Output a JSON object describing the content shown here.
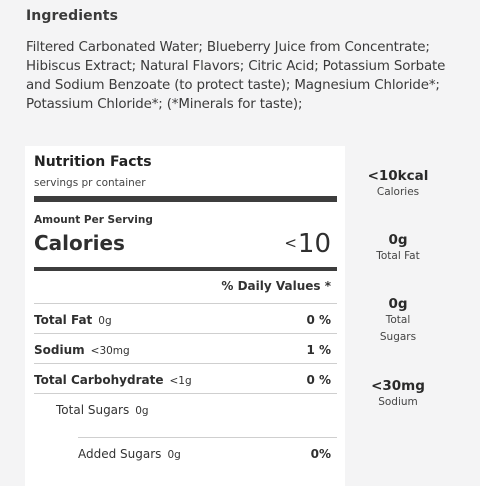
{
  "ingredients": {
    "title": "Ingredients",
    "text": "Filtered Carbonated Water; Blueberry Juice from Concentrate; Hibiscus Extract; Natural Flavors; Citric Acid; Potassium Sorbate and Sodium Benzoate (to protect taste); Magnesium Chloride*; Potassium Chloride*; (*Minerals for taste);"
  },
  "nutrition": {
    "title": "Nutrition Facts",
    "servings": "servings pr container",
    "amount_per_serving": "Amount Per Serving",
    "calories_label": "Calories",
    "calories_prefix": "<",
    "calories_value": "10",
    "daily_value_header": "% Daily Values *",
    "rows": [
      {
        "name": "Total Fat",
        "amount": "0g",
        "pct": "0 %"
      },
      {
        "name": "Sodium",
        "amount": "<30mg",
        "pct": "1 %"
      },
      {
        "name": "Total Carbohydrate",
        "amount": "<1g",
        "pct": "0 %"
      },
      {
        "name": "Total Sugars",
        "amount": "0g",
        "pct": ""
      },
      {
        "name": "Added Sugars",
        "amount": "0g",
        "pct": "0%"
      }
    ]
  },
  "highlights": [
    {
      "value": "<10kcal",
      "label": "Calories"
    },
    {
      "value": "0g",
      "label": "Total Fat"
    },
    {
      "value": "0g",
      "label": "Total Sugars"
    },
    {
      "value": "<30mg",
      "label": "Sodium"
    }
  ]
}
